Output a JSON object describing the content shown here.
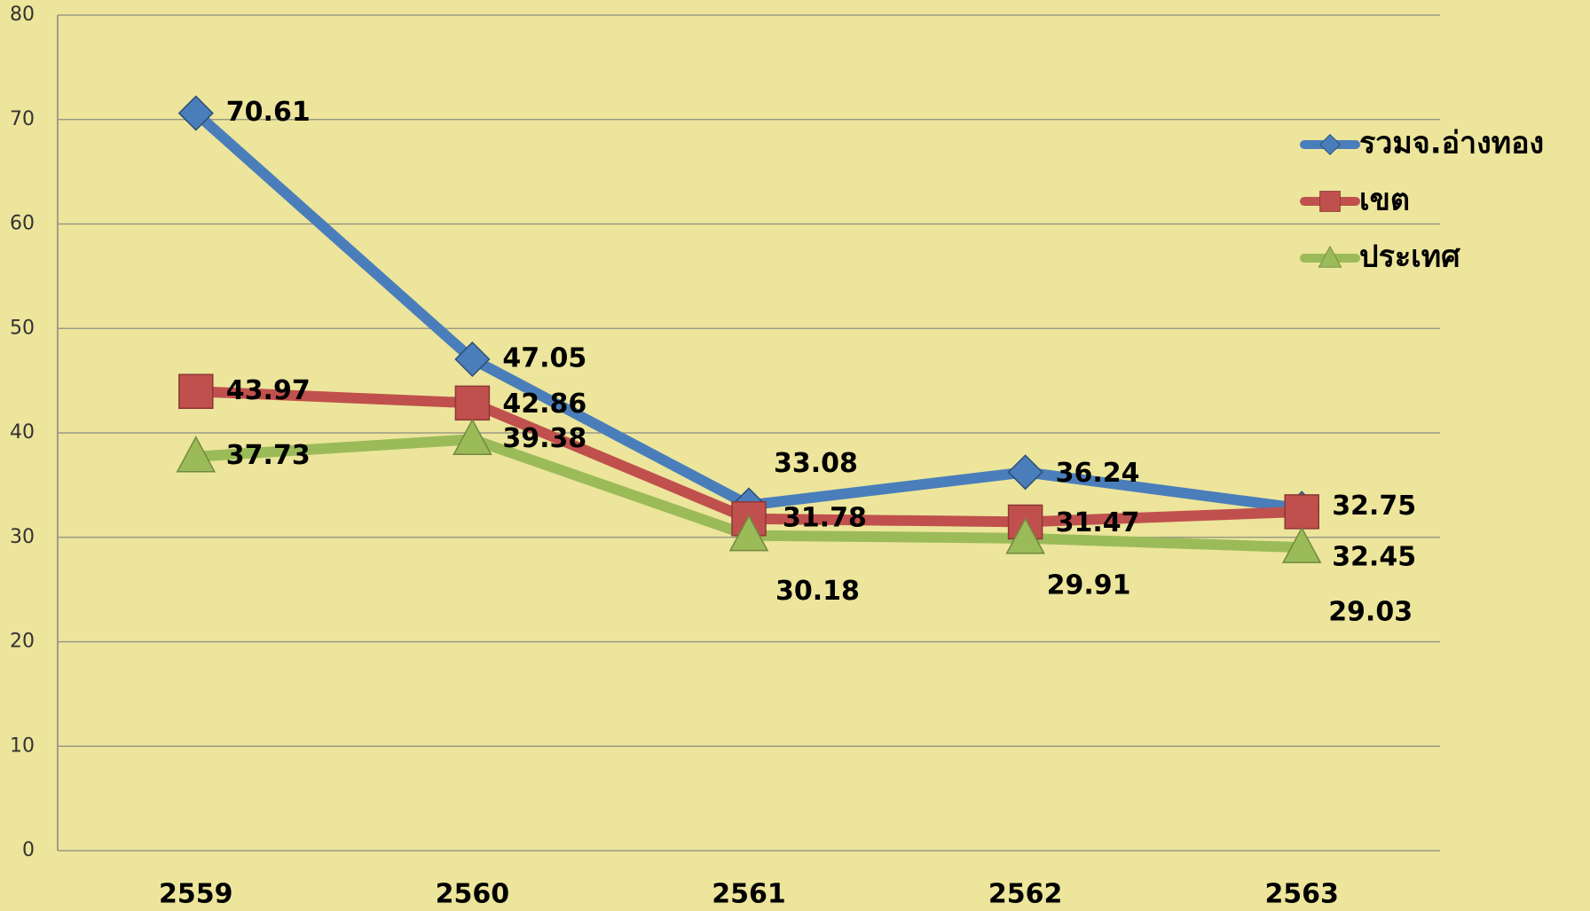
{
  "chart_data": {
    "type": "line",
    "categories": [
      "2559",
      "2560",
      "2561",
      "2562",
      "2563"
    ],
    "series": [
      {
        "name": "รวมจ.อ่างทอง",
        "color": "#4a7ebb",
        "marker": "diamond",
        "values": [
          70.61,
          47.05,
          33.08,
          36.24,
          32.75
        ]
      },
      {
        "name": "เขต",
        "color": "#c0504d",
        "marker": "square",
        "values": [
          43.97,
          42.86,
          31.78,
          31.47,
          32.45
        ]
      },
      {
        "name": "ประเทศ",
        "color": "#9bbb59",
        "marker": "triangle",
        "values": [
          37.73,
          39.38,
          30.18,
          29.91,
          29.03
        ]
      }
    ],
    "ylim": [
      0,
      80
    ],
    "yticks": [
      0,
      10,
      20,
      30,
      40,
      50,
      60,
      70,
      80
    ],
    "grid": true,
    "legend": "right"
  }
}
